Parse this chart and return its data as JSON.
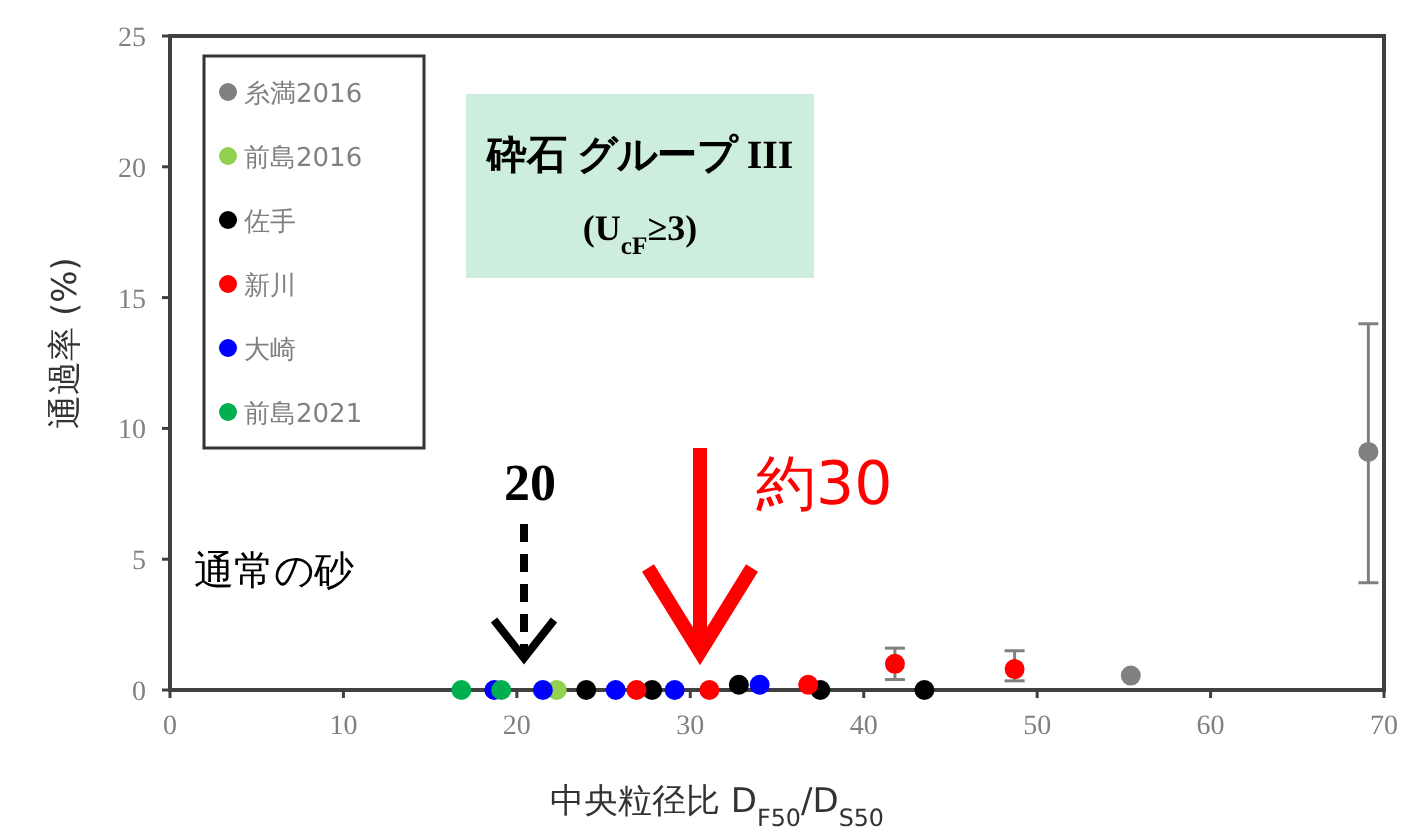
{
  "chart_data": {
    "type": "scatter",
    "title": "砕石 グループ III",
    "subtitle": "(U$_{cF}$≥3)",
    "xlabel": "中央粒径比 D$_{F50}$/D$_{S50}$",
    "ylabel": "通過率 (%)",
    "xlim": [
      0,
      70
    ],
    "ylim": [
      0,
      25
    ],
    "xticks": [
      0,
      10,
      20,
      30,
      40,
      50,
      60,
      70
    ],
    "yticks": [
      0,
      5,
      10,
      15,
      20,
      25
    ],
    "grid": false,
    "legend": "top left",
    "marker": "circle",
    "series": [
      {
        "name": "糸満2016",
        "color": "#808080",
        "x": [
          55.4,
          69.1
        ],
        "values": [
          0.55,
          9.1
        ],
        "errors": [
          null,
          [
            4.1,
            14.0
          ]
        ]
      },
      {
        "name": "前島2016",
        "color": "#92d050",
        "x": [
          22.3
        ],
        "values": [
          0
        ]
      },
      {
        "name": "佐手",
        "color": "#000000",
        "x": [
          24.0,
          27.8,
          32.8,
          37.5,
          43.5
        ],
        "values": [
          0,
          0,
          0.2,
          0,
          0
        ]
      },
      {
        "name": "新川",
        "color": "#ff0000",
        "x": [
          26.9,
          31.1,
          36.8,
          41.8,
          48.7
        ],
        "values": [
          0,
          0,
          0.2,
          1.0,
          0.8
        ],
        "errors": [
          null,
          null,
          null,
          [
            0.4,
            1.6
          ],
          [
            0.35,
            1.5
          ]
        ]
      },
      {
        "name": "大崎",
        "color": "#0000ff",
        "x": [
          18.7,
          21.5,
          25.7,
          29.1,
          34.0
        ],
        "values": [
          0,
          0,
          0,
          0,
          0.2
        ]
      },
      {
        "name": "前島2021",
        "color": "#00b050",
        "x": [
          16.8,
          19.1
        ],
        "values": [
          0,
          0
        ]
      }
    ],
    "annotations": [
      "20",
      "約30",
      "通常の砂"
    ]
  }
}
